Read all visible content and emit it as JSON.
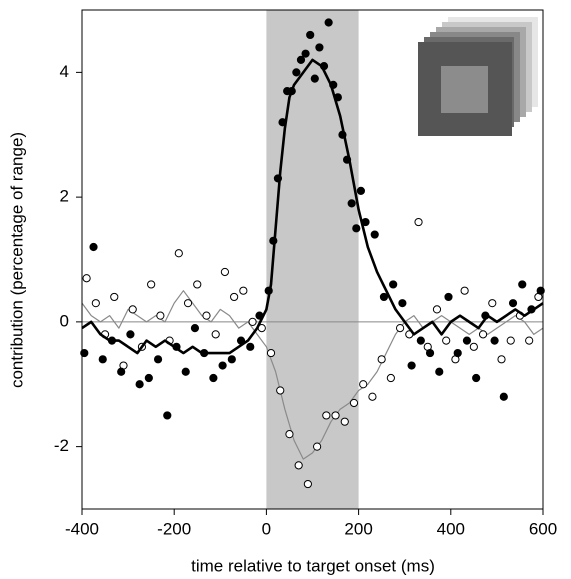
{
  "chart_data": {
    "type": "scatter",
    "xlabel": "time relative to target onset (ms)",
    "ylabel": "contribution (percentage of range)",
    "xlim": [
      -400,
      600
    ],
    "ylim": [
      -3,
      5
    ],
    "xticks": [
      -400,
      -200,
      0,
      200,
      400,
      600
    ],
    "yticks": [
      -2,
      0,
      2,
      4
    ],
    "shade": [
      0,
      200
    ],
    "shade_color": "#c8c8c8",
    "hline": 0,
    "hline_color": "#888888",
    "series": [
      {
        "kind": "line",
        "color": "#8a8a8a",
        "width": 1.2,
        "x": [
          -400,
          -380,
          -360,
          -340,
          -320,
          -300,
          -280,
          -260,
          -240,
          -220,
          -200,
          -180,
          -160,
          -140,
          -120,
          -100,
          -80,
          -60,
          -40,
          -20,
          0,
          20,
          40,
          60,
          80,
          100,
          120,
          140,
          160,
          180,
          200,
          220,
          240,
          260,
          280,
          300,
          320,
          340,
          360,
          380,
          400,
          420,
          440,
          460,
          480,
          500,
          520,
          540,
          560,
          580,
          600
        ],
        "values": [
          0.3,
          0.1,
          0.0,
          0.1,
          -0.1,
          0.2,
          0.1,
          0.0,
          0.1,
          0.0,
          0.3,
          0.5,
          0.3,
          0.1,
          0.0,
          0.2,
          0.1,
          -0.1,
          0.0,
          -0.2,
          -0.4,
          -0.8,
          -1.4,
          -1.9,
          -2.2,
          -2.1,
          -1.9,
          -1.6,
          -1.4,
          -1.3,
          -1.1,
          -1.0,
          -0.8,
          -0.5,
          -0.2,
          0.0,
          0.1,
          -0.1,
          0.0,
          0.1,
          0.0,
          -0.1,
          -0.2,
          -0.1,
          -0.2,
          -0.1,
          0.0,
          0.1,
          0.0,
          -0.2,
          -0.1
        ]
      },
      {
        "kind": "points",
        "color": "#000000",
        "filled": false,
        "x": [
          -390,
          -370,
          -350,
          -330,
          -310,
          -290,
          -270,
          -250,
          -230,
          -210,
          -190,
          -170,
          -150,
          -130,
          -110,
          -90,
          -70,
          -50,
          -30,
          -10,
          10,
          30,
          50,
          70,
          90,
          110,
          130,
          150,
          170,
          190,
          210,
          230,
          250,
          270,
          290,
          310,
          330,
          350,
          370,
          390,
          410,
          430,
          450,
          470,
          490,
          510,
          530,
          550,
          570,
          590
        ],
        "values": [
          0.7,
          0.3,
          -0.2,
          0.4,
          -0.7,
          0.2,
          -0.4,
          0.6,
          0.1,
          -0.3,
          1.1,
          0.3,
          0.6,
          0.1,
          -0.2,
          0.8,
          0.4,
          0.5,
          0.0,
          -0.1,
          -0.5,
          -1.1,
          -1.8,
          -2.3,
          -2.6,
          -2.0,
          -1.5,
          -1.5,
          -1.6,
          -1.3,
          -1.0,
          -1.2,
          -0.6,
          -0.9,
          -0.1,
          -0.2,
          1.6,
          -0.4,
          0.2,
          -0.3,
          -0.6,
          0.5,
          -0.4,
          -0.2,
          0.3,
          -0.6,
          -0.3,
          0.1,
          -0.3,
          0.4
        ]
      },
      {
        "kind": "line",
        "color": "#000000",
        "width": 2.6,
        "x": [
          -400,
          -380,
          -360,
          -340,
          -320,
          -300,
          -280,
          -260,
          -240,
          -220,
          -200,
          -180,
          -160,
          -140,
          -120,
          -100,
          -80,
          -60,
          -40,
          -20,
          0,
          10,
          20,
          30,
          40,
          50,
          60,
          80,
          100,
          120,
          140,
          160,
          180,
          200,
          220,
          240,
          260,
          280,
          300,
          320,
          340,
          360,
          380,
          400,
          420,
          440,
          460,
          480,
          500,
          520,
          540,
          560,
          580,
          600
        ],
        "values": [
          -0.1,
          0.0,
          -0.2,
          -0.3,
          -0.3,
          -0.4,
          -0.5,
          -0.3,
          -0.4,
          -0.3,
          -0.4,
          -0.5,
          -0.4,
          -0.5,
          -0.5,
          -0.5,
          -0.5,
          -0.4,
          -0.3,
          -0.1,
          0.2,
          0.6,
          1.5,
          2.4,
          3.1,
          3.6,
          3.8,
          4.0,
          4.2,
          4.1,
          3.8,
          3.3,
          2.6,
          1.8,
          1.2,
          0.8,
          0.5,
          0.2,
          0.0,
          -0.2,
          -0.1,
          0.0,
          -0.2,
          0.0,
          0.1,
          0.0,
          -0.1,
          0.1,
          0.0,
          0.1,
          0.2,
          0.1,
          0.2,
          0.3
        ]
      },
      {
        "kind": "points",
        "color": "#000000",
        "filled": true,
        "x": [
          -395,
          -375,
          -355,
          -335,
          -315,
          -295,
          -275,
          -255,
          -235,
          -215,
          -195,
          -175,
          -155,
          -135,
          -115,
          -95,
          -75,
          -55,
          -35,
          -15,
          5,
          15,
          25,
          35,
          45,
          55,
          65,
          75,
          85,
          95,
          105,
          115,
          125,
          135,
          145,
          155,
          165,
          175,
          185,
          195,
          205,
          215,
          235,
          255,
          275,
          295,
          315,
          335,
          355,
          375,
          395,
          415,
          435,
          455,
          475,
          495,
          515,
          535,
          555,
          575,
          595
        ],
        "values": [
          -0.5,
          1.2,
          -0.6,
          -0.3,
          -0.8,
          -0.2,
          -1.0,
          -0.9,
          -0.6,
          -1.5,
          -0.4,
          -0.8,
          -0.1,
          -0.5,
          -0.9,
          -0.7,
          -0.6,
          -0.3,
          -0.4,
          0.1,
          0.5,
          1.3,
          2.3,
          3.2,
          3.7,
          3.7,
          4.0,
          4.2,
          4.3,
          4.6,
          3.9,
          4.4,
          4.1,
          4.8,
          3.8,
          3.6,
          3.0,
          2.6,
          1.9,
          1.5,
          2.1,
          1.6,
          1.4,
          0.4,
          0.6,
          0.3,
          -0.7,
          -0.3,
          -0.5,
          -0.8,
          0.4,
          -0.5,
          -0.3,
          -0.9,
          0.1,
          -0.3,
          -1.2,
          0.3,
          0.6,
          0.2,
          0.5
        ]
      }
    ]
  }
}
